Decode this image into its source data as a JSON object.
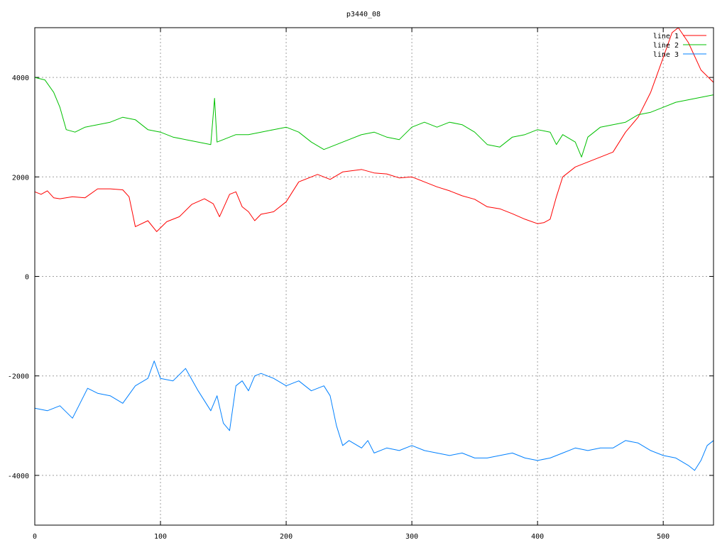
{
  "chart_data": {
    "type": "line",
    "title": "p3440_08",
    "xlabel": "",
    "ylabel": "",
    "xlim": [
      0,
      540
    ],
    "ylim": [
      -5000,
      5000
    ],
    "xticks": [
      0,
      100,
      200,
      300,
      400,
      500
    ],
    "yticks": [
      -4000,
      -2000,
      0,
      2000,
      4000
    ],
    "grid": true,
    "legend_position": "top-right",
    "series": [
      {
        "name": "line 1",
        "color": "#ff0000",
        "points": [
          [
            0,
            1700
          ],
          [
            5,
            1650
          ],
          [
            10,
            1720
          ],
          [
            15,
            1580
          ],
          [
            20,
            1560
          ],
          [
            30,
            1600
          ],
          [
            40,
            1580
          ],
          [
            50,
            1760
          ],
          [
            60,
            1760
          ],
          [
            70,
            1740
          ],
          [
            75,
            1600
          ],
          [
            80,
            1000
          ],
          [
            90,
            1120
          ],
          [
            97,
            900
          ],
          [
            105,
            1100
          ],
          [
            115,
            1200
          ],
          [
            125,
            1450
          ],
          [
            135,
            1560
          ],
          [
            142,
            1460
          ],
          [
            147,
            1200
          ],
          [
            155,
            1650
          ],
          [
            160,
            1700
          ],
          [
            165,
            1400
          ],
          [
            170,
            1300
          ],
          [
            175,
            1120
          ],
          [
            180,
            1250
          ],
          [
            190,
            1300
          ],
          [
            200,
            1500
          ],
          [
            210,
            1900
          ],
          [
            225,
            2050
          ],
          [
            235,
            1950
          ],
          [
            245,
            2100
          ],
          [
            260,
            2150
          ],
          [
            270,
            2080
          ],
          [
            280,
            2060
          ],
          [
            290,
            1980
          ],
          [
            300,
            2000
          ],
          [
            310,
            1900
          ],
          [
            320,
            1800
          ],
          [
            330,
            1720
          ],
          [
            340,
            1620
          ],
          [
            350,
            1550
          ],
          [
            360,
            1400
          ],
          [
            370,
            1360
          ],
          [
            380,
            1260
          ],
          [
            390,
            1150
          ],
          [
            400,
            1060
          ],
          [
            405,
            1080
          ],
          [
            410,
            1150
          ],
          [
            415,
            1600
          ],
          [
            420,
            2000
          ],
          [
            430,
            2200
          ],
          [
            440,
            2300
          ],
          [
            450,
            2400
          ],
          [
            460,
            2500
          ],
          [
            470,
            2900
          ],
          [
            480,
            3200
          ],
          [
            490,
            3700
          ],
          [
            500,
            4400
          ],
          [
            507,
            4900
          ],
          [
            512,
            5000
          ],
          [
            520,
            4700
          ],
          [
            530,
            4150
          ],
          [
            540,
            3900
          ]
        ]
      },
      {
        "name": "line 2",
        "color": "#00c000",
        "points": [
          [
            0,
            4000
          ],
          [
            8,
            3950
          ],
          [
            15,
            3700
          ],
          [
            20,
            3400
          ],
          [
            25,
            2950
          ],
          [
            32,
            2900
          ],
          [
            40,
            3000
          ],
          [
            50,
            3050
          ],
          [
            60,
            3100
          ],
          [
            70,
            3200
          ],
          [
            80,
            3150
          ],
          [
            90,
            2950
          ],
          [
            100,
            2900
          ],
          [
            110,
            2800
          ],
          [
            120,
            2750
          ],
          [
            130,
            2700
          ],
          [
            140,
            2650
          ],
          [
            143,
            3580
          ],
          [
            145,
            2700
          ],
          [
            150,
            2750
          ],
          [
            160,
            2850
          ],
          [
            170,
            2850
          ],
          [
            180,
            2900
          ],
          [
            190,
            2950
          ],
          [
            200,
            3000
          ],
          [
            210,
            2900
          ],
          [
            220,
            2700
          ],
          [
            230,
            2550
          ],
          [
            240,
            2650
          ],
          [
            250,
            2750
          ],
          [
            260,
            2850
          ],
          [
            270,
            2900
          ],
          [
            280,
            2800
          ],
          [
            290,
            2750
          ],
          [
            300,
            3000
          ],
          [
            310,
            3100
          ],
          [
            320,
            3000
          ],
          [
            330,
            3100
          ],
          [
            340,
            3050
          ],
          [
            350,
            2900
          ],
          [
            360,
            2650
          ],
          [
            370,
            2600
          ],
          [
            380,
            2800
          ],
          [
            390,
            2850
          ],
          [
            400,
            2950
          ],
          [
            410,
            2900
          ],
          [
            415,
            2650
          ],
          [
            420,
            2850
          ],
          [
            430,
            2700
          ],
          [
            435,
            2400
          ],
          [
            440,
            2800
          ],
          [
            450,
            3000
          ],
          [
            460,
            3050
          ],
          [
            470,
            3100
          ],
          [
            480,
            3250
          ],
          [
            490,
            3300
          ],
          [
            500,
            3400
          ],
          [
            510,
            3500
          ],
          [
            520,
            3550
          ],
          [
            530,
            3600
          ],
          [
            540,
            3650
          ]
        ]
      },
      {
        "name": "line 3",
        "color": "#0080ff",
        "points": [
          [
            0,
            -2650
          ],
          [
            10,
            -2700
          ],
          [
            20,
            -2600
          ],
          [
            30,
            -2850
          ],
          [
            35,
            -2600
          ],
          [
            42,
            -2250
          ],
          [
            50,
            -2350
          ],
          [
            60,
            -2400
          ],
          [
            70,
            -2550
          ],
          [
            80,
            -2200
          ],
          [
            90,
            -2050
          ],
          [
            95,
            -1700
          ],
          [
            100,
            -2050
          ],
          [
            110,
            -2100
          ],
          [
            120,
            -1850
          ],
          [
            130,
            -2300
          ],
          [
            140,
            -2700
          ],
          [
            145,
            -2400
          ],
          [
            150,
            -2950
          ],
          [
            155,
            -3100
          ],
          [
            160,
            -2200
          ],
          [
            165,
            -2100
          ],
          [
            170,
            -2300
          ],
          [
            175,
            -2000
          ],
          [
            180,
            -1950
          ],
          [
            190,
            -2050
          ],
          [
            200,
            -2200
          ],
          [
            210,
            -2100
          ],
          [
            220,
            -2300
          ],
          [
            230,
            -2200
          ],
          [
            235,
            -2400
          ],
          [
            240,
            -3000
          ],
          [
            245,
            -3400
          ],
          [
            250,
            -3300
          ],
          [
            260,
            -3450
          ],
          [
            265,
            -3300
          ],
          [
            270,
            -3550
          ],
          [
            280,
            -3450
          ],
          [
            290,
            -3500
          ],
          [
            300,
            -3400
          ],
          [
            310,
            -3500
          ],
          [
            320,
            -3550
          ],
          [
            330,
            -3600
          ],
          [
            340,
            -3550
          ],
          [
            350,
            -3650
          ],
          [
            360,
            -3650
          ],
          [
            370,
            -3600
          ],
          [
            380,
            -3550
          ],
          [
            390,
            -3650
          ],
          [
            400,
            -3700
          ],
          [
            410,
            -3650
          ],
          [
            420,
            -3550
          ],
          [
            430,
            -3450
          ],
          [
            440,
            -3500
          ],
          [
            450,
            -3450
          ],
          [
            460,
            -3450
          ],
          [
            470,
            -3300
          ],
          [
            480,
            -3350
          ],
          [
            490,
            -3500
          ],
          [
            500,
            -3600
          ],
          [
            510,
            -3650
          ],
          [
            520,
            -3800
          ],
          [
            525,
            -3900
          ],
          [
            530,
            -3700
          ],
          [
            535,
            -3400
          ],
          [
            540,
            -3300
          ]
        ]
      }
    ]
  }
}
